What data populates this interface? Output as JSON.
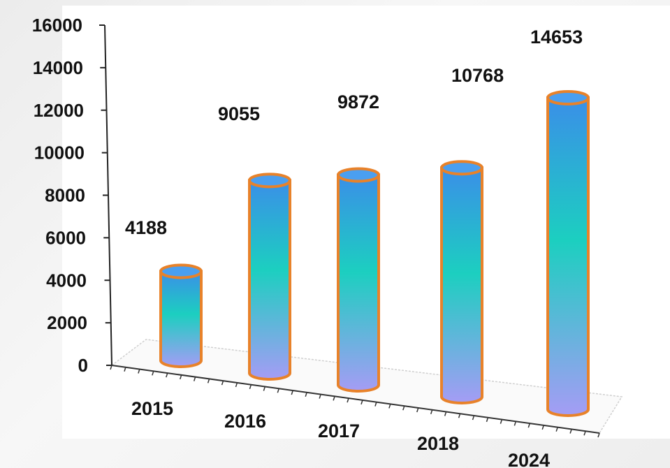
{
  "chart_data": {
    "type": "bar",
    "style": "3d-cylinder",
    "categories": [
      "2015",
      "2016",
      "2017",
      "2018",
      "2024"
    ],
    "values": [
      4188,
      9055,
      9872,
      10768,
      14653
    ],
    "data_labels": [
      "4188",
      "9055",
      "9872",
      "10768",
      "14653"
    ],
    "title": "",
    "xlabel": "",
    "ylabel": "",
    "ylim": [
      0,
      16000
    ],
    "yticks": [
      0,
      2000,
      4000,
      6000,
      8000,
      10000,
      12000,
      14000,
      16000
    ],
    "ytick_labels": [
      "0",
      "2000",
      "4000",
      "6000",
      "8000",
      "10000",
      "12000",
      "14000",
      "16000"
    ],
    "grid": false,
    "legend": "none",
    "colors": {
      "bar_top": "#3a8fe8",
      "bar_mid": "#1ccfc0",
      "bar_bottom": "#a59cf5",
      "bar_outline": "#e8822a",
      "cap_fill": "#4a9ff0"
    }
  }
}
